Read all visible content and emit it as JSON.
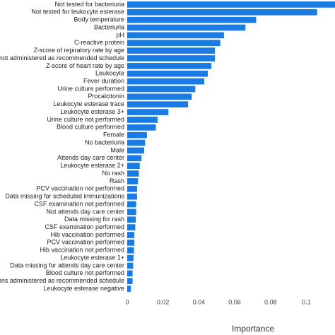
{
  "chart_data": {
    "type": "barh",
    "xlabel": "Importance",
    "color": "#1a7be2",
    "categories": [
      "Not tested for bacteriuria",
      "Not tested for leukocyte esterase",
      "Body temperature",
      "Bacteriuria",
      "pH",
      "C-reactive protein",
      "Z-score of repiratory rate by age",
      "not administered as recommended schedule",
      "Z-score of heart rate by age",
      "Leukocyte",
      "Fever duration",
      "Urine culture performed",
      "Procalcitonin",
      "Leukocyte esterase trace",
      "Leukocyte esterase 3+",
      "Urine culture not performed",
      "Blood culture performed",
      "Female",
      "No bacteriuria",
      "Male",
      "Attends day care center",
      "Leukocyte esterase 2+",
      "No rash",
      "Rash",
      "PCV vaccination not performed",
      "Data missing for scheduled immunizations",
      "CSF examination not performed",
      "Not attends day care center",
      "Data missing for rash",
      "CSF examination performed",
      "Hib vaccination performed",
      "PCV vaccination performed",
      "Hib vaccination not performed",
      "Leukocyte esterase 1+",
      "Data missing for attends day care center",
      "Blood culture not performed",
      "ons administered as recommended schedule",
      "Leukocyte esterase negative"
    ],
    "values": [
      0.118,
      0.106,
      0.072,
      0.066,
      0.054,
      0.052,
      0.049,
      0.049,
      0.047,
      0.045,
      0.043,
      0.038,
      0.036,
      0.034,
      0.023,
      0.017,
      0.016,
      0.011,
      0.01,
      0.0095,
      0.008,
      0.007,
      0.0065,
      0.006,
      0.0055,
      0.0055,
      0.005,
      0.005,
      0.0048,
      0.0045,
      0.004,
      0.004,
      0.0038,
      0.0035,
      0.0033,
      0.003,
      0.003,
      0.002
    ],
    "xlim": [
      0,
      0.116
    ],
    "xticks": [
      0,
      0.02,
      0.04,
      0.06,
      0.08,
      0.1
    ]
  }
}
